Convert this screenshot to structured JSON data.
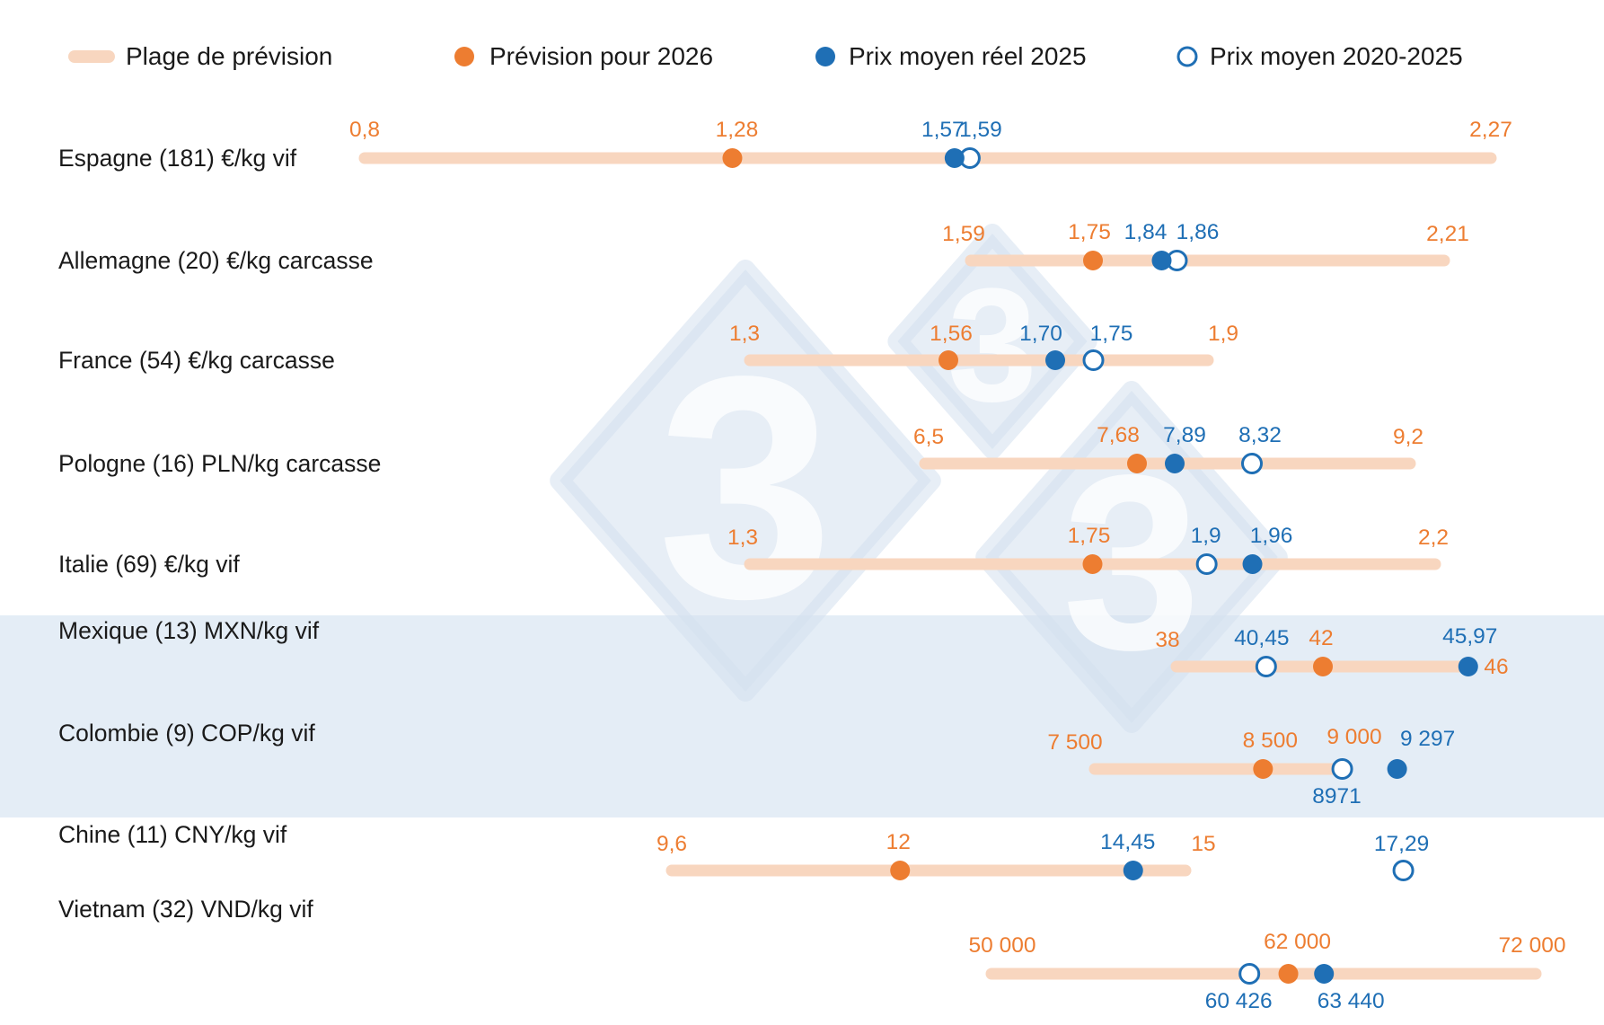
{
  "colors": {
    "range": "#f8d6bf",
    "forecast": "#ed7d31",
    "actual": "#1f6fb5",
    "average": "#1f6fb5",
    "band": "#e4edf6",
    "watermark": "#d3e0ef"
  },
  "watermark": {
    "glyph": "3"
  },
  "legend": [
    {
      "key": "range",
      "label": "Plage de prévision"
    },
    {
      "key": "forecast",
      "label": "Prévision pour 2026"
    },
    {
      "key": "actual",
      "label": "Prix moyen réel 2025"
    },
    {
      "key": "average",
      "label": "Prix moyen 2020-2025"
    }
  ],
  "chart_data": {
    "type": "range-dot",
    "rows": [
      {
        "label": "Espagne (181) €/kg vif",
        "range": [
          0.8,
          2.27
        ],
        "forecast": 1.28,
        "actual": 1.57,
        "average": 1.59,
        "labels": {
          "min": "0,8",
          "max": "2,27",
          "forecast": "1,28",
          "actual": "1,57",
          "average": "1,59"
        }
      },
      {
        "label": "Allemagne (20) €/kg carcasse",
        "range": [
          1.59,
          2.21
        ],
        "forecast": 1.75,
        "actual": 1.84,
        "average": 1.86,
        "labels": {
          "min": "1,59",
          "max": "2,21",
          "forecast": "1,75",
          "actual": "1,84",
          "average": "1,86"
        }
      },
      {
        "label": "France (54) €/kg carcasse",
        "range": [
          1.3,
          1.9
        ],
        "forecast": 1.56,
        "actual": 1.7,
        "average": 1.75,
        "labels": {
          "min": "1,3",
          "max": "1,9",
          "forecast": "1,56",
          "actual": "1,70",
          "average": "1,75"
        }
      },
      {
        "label": "Pologne (16) PLN/kg carcasse",
        "range": [
          6.5,
          9.2
        ],
        "forecast": 7.68,
        "actual": 7.89,
        "average": 8.32,
        "labels": {
          "min": "6,5",
          "max": "9,2",
          "forecast": "7,68",
          "actual": "7,89",
          "average": "8,32"
        }
      },
      {
        "label": "Italie (69) €/kg vif",
        "range": [
          1.3,
          2.2
        ],
        "forecast": 1.75,
        "actual": 1.96,
        "average": 1.9,
        "labels": {
          "min": "1,3",
          "max": "2,2",
          "forecast": "1,75",
          "actual": "1,96",
          "average": "1,9"
        }
      },
      {
        "label": "Mexique (13) MXN/kg vif",
        "range": [
          38,
          46
        ],
        "forecast": 42,
        "actual": 45.97,
        "average": 40.45,
        "highlight": true,
        "labels": {
          "min": "38",
          "max": "46",
          "forecast": "42",
          "actual": "45,97",
          "average": "40,45"
        }
      },
      {
        "label": "Colombie (9) COP/kg vif",
        "range": [
          7500,
          9000
        ],
        "forecast": 8500,
        "actual": 9297,
        "average": 8971,
        "highlight": true,
        "labels": {
          "min": "7 500",
          "max": "9 000",
          "forecast": "8 500",
          "actual": "9 297",
          "average": "8971"
        }
      },
      {
        "label": "Chine (11) CNY/kg vif",
        "range": [
          9.6,
          15
        ],
        "forecast": 12,
        "actual": 14.45,
        "average": 17.29,
        "labels": {
          "min": "9,6",
          "max": "15",
          "forecast": "12",
          "actual": "14,45",
          "average": "17,29"
        }
      },
      {
        "label": "Vietnam (32) VND/kg vif",
        "range": [
          50000,
          72000
        ],
        "forecast": 62000,
        "actual": 63440,
        "average": 60426,
        "labels": {
          "min": "50 000",
          "max": "72 000",
          "forecast": "62 000",
          "actual": "63 440",
          "average": "60 426"
        }
      }
    ]
  }
}
